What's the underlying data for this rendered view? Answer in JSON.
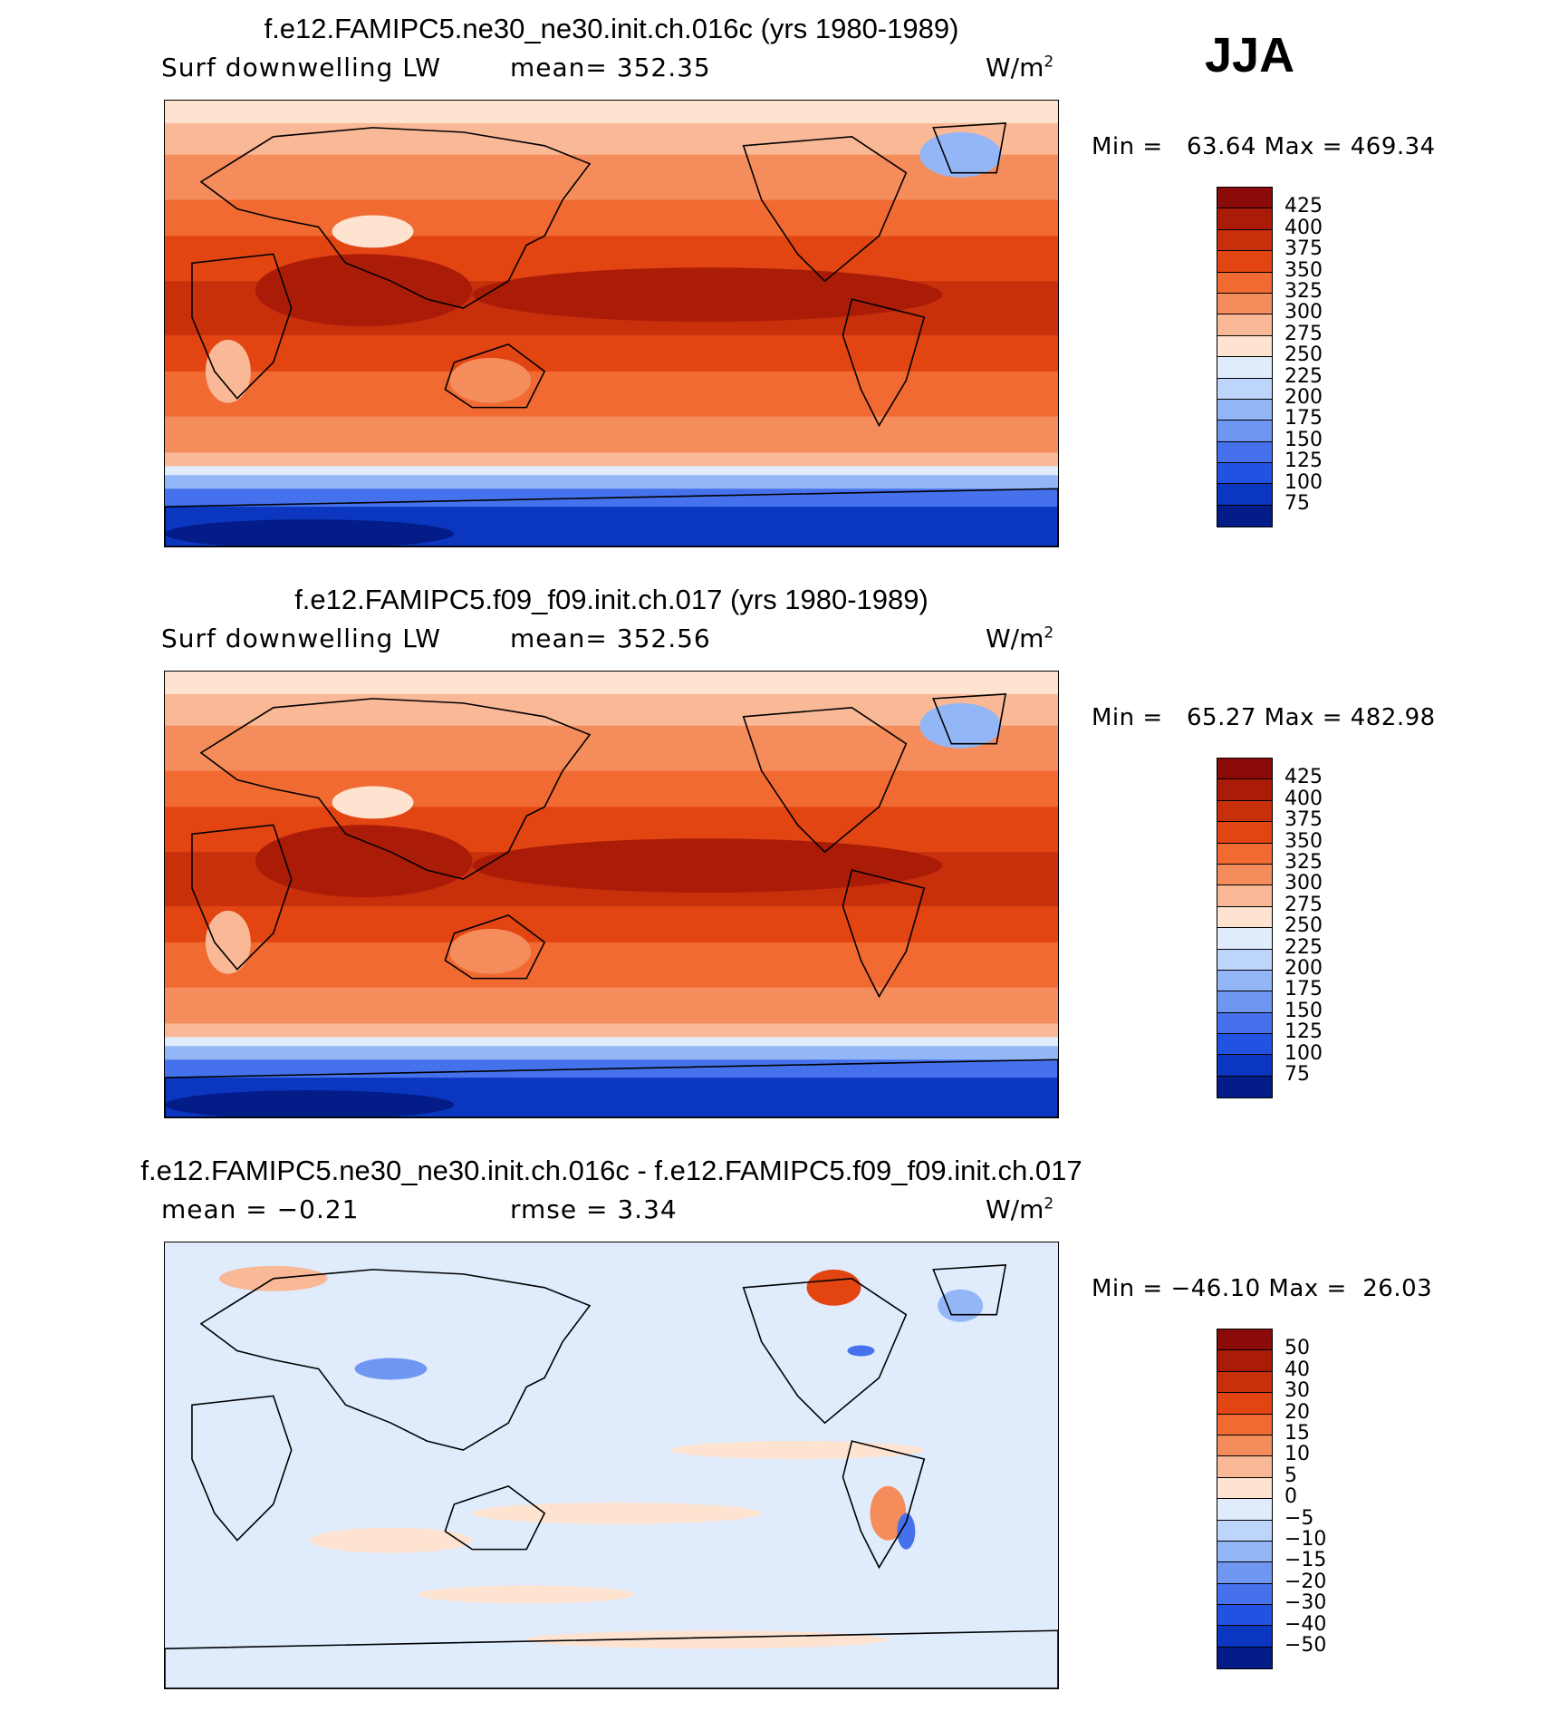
{
  "season": "JJA",
  "panels": [
    {
      "title": "f.e12.FAMIPC5.ne30_ne30.init.ch.016c (yrs 1980-1989)",
      "left_label": "Surf downwelling LW",
      "center_label": "mean= 352.35",
      "units": "W/m",
      "units_exp": "2",
      "minmax": "Min =   63.64 Max = 469.34",
      "scale": "abs"
    },
    {
      "title": "f.e12.FAMIPC5.f09_f09.init.ch.017 (yrs 1980-1989)",
      "left_label": "Surf downwelling LW",
      "center_label": "mean= 352.56",
      "units": "W/m",
      "units_exp": "2",
      "minmax": "Min =   65.27 Max = 482.98",
      "scale": "abs"
    },
    {
      "title": "f.e12.FAMIPC5.ne30_ne30.init.ch.016c - f.e12.FAMIPC5.f09_f09.init.ch.017",
      "left_label": "mean =   −0.21",
      "center_label": "rmse =    3.34",
      "units": "W/m",
      "units_exp": "2",
      "minmax": "Min = −46.10 Max =  26.03",
      "scale": "diff"
    }
  ],
  "colorbars": {
    "abs": {
      "labels": [
        "425",
        "400",
        "375",
        "350",
        "325",
        "300",
        "275",
        "250",
        "225",
        "200",
        "175",
        "150",
        "125",
        "100",
        "75"
      ],
      "colors": [
        "#8b0a0a",
        "#aa1c08",
        "#c8300c",
        "#e24412",
        "#f06a32",
        "#f58c5c",
        "#f9b896",
        "#fde3d0",
        "#e0ecfc",
        "#bdd5fb",
        "#93b6f6",
        "#6f96f0",
        "#4571ec",
        "#2053e2",
        "#0a36c0",
        "#031c88"
      ]
    },
    "diff": {
      "labels": [
        "50",
        "40",
        "30",
        "20",
        "15",
        "10",
        "5",
        "0",
        "−5",
        "−10",
        "−15",
        "−20",
        "−30",
        "−40",
        "−50"
      ],
      "colors": [
        "#8b0a0a",
        "#aa1c08",
        "#c8300c",
        "#e24412",
        "#f06a32",
        "#f58c5c",
        "#f9b896",
        "#fde3d0",
        "#e0ecfc",
        "#bdd5fb",
        "#93b6f6",
        "#6f96f0",
        "#4571ec",
        "#2053e2",
        "#0a36c0",
        "#031c88"
      ]
    }
  }
}
